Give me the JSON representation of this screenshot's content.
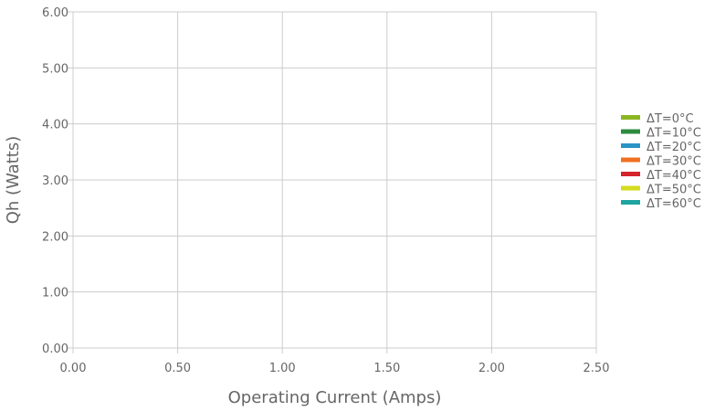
{
  "chart_data": {
    "type": "line",
    "title": "",
    "xlabel": "Operating Current (Amps)",
    "ylabel": "Qh (Watts)",
    "xlim": [
      0,
      2.5
    ],
    "ylim": [
      0,
      6
    ],
    "x_ticks": [
      "0.00",
      "0.50",
      "1.00",
      "1.50",
      "2.00",
      "2.50"
    ],
    "y_ticks": [
      "0.00",
      "1.00",
      "2.00",
      "3.00",
      "4.00",
      "5.00",
      "6.00"
    ],
    "grid": true,
    "legend_position": "right",
    "series": [
      {
        "name": "ΔT=0°C",
        "color": "#8cb522",
        "values": []
      },
      {
        "name": "ΔT=10°C",
        "color": "#2e8b3e",
        "values": []
      },
      {
        "name": "ΔT=20°C",
        "color": "#2b93c6",
        "values": []
      },
      {
        "name": "ΔT=30°C",
        "color": "#f07020",
        "values": []
      },
      {
        "name": "ΔT=40°C",
        "color": "#d6232b",
        "values": []
      },
      {
        "name": "ΔT=50°C",
        "color": "#d4dc1e",
        "values": []
      },
      {
        "name": "ΔT=60°C",
        "color": "#1ea5a0",
        "values": []
      }
    ]
  }
}
